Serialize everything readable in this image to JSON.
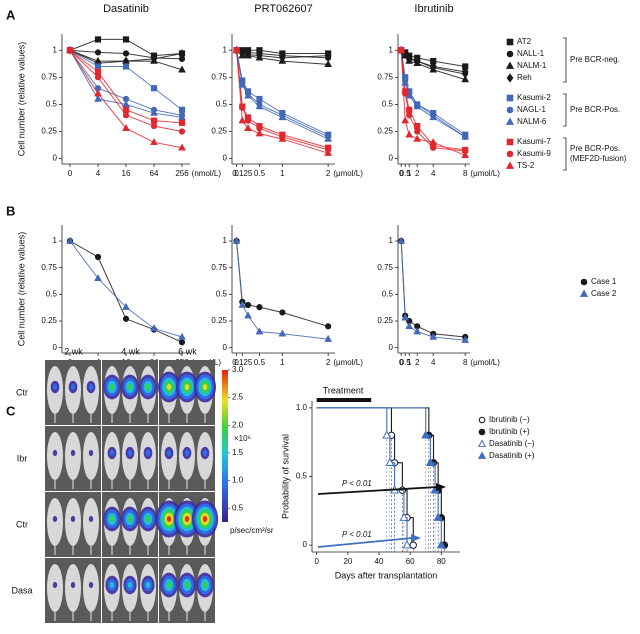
{
  "panel_labels": [
    "A",
    "B",
    "C"
  ],
  "legend_groups": [
    [
      "Pre BCR-neg."
    ],
    [
      "Pre BCR-Pos."
    ],
    [
      "Pre BCR-Pos.",
      "(MEF2D-fusion)"
    ]
  ],
  "chart_data": [
    {
      "type": "line",
      "title": "Dasatinib",
      "y_label": "Cell number (relative values)",
      "categories": [
        "0",
        "4",
        "16",
        "64",
        "256"
      ],
      "x_unit": "(nmol/L)",
      "ylim": [
        -0.05,
        1.15
      ],
      "yticks": [
        0,
        0.25,
        0.5,
        0.75,
        1
      ],
      "legend": true,
      "series": [
        {
          "name": "AT2",
          "color": "#1a1a1a",
          "marker": "square",
          "values": [
            1,
            1.1,
            1.1,
            0.95,
            0.97
          ]
        },
        {
          "name": "NALL-1",
          "color": "#1a1a1a",
          "marker": "circle",
          "values": [
            1,
            0.98,
            0.97,
            0.93,
            0.92
          ]
        },
        {
          "name": "NALM-1",
          "color": "#1a1a1a",
          "marker": "triangle",
          "values": [
            1,
            0.9,
            0.9,
            0.9,
            0.82
          ]
        },
        {
          "name": "Reh",
          "color": "#1a1a1a",
          "marker": "diamond",
          "values": [
            1,
            0.88,
            0.9,
            0.92,
            0.97
          ]
        },
        {
          "name": "Kasumi-2",
          "color": "#4468b8",
          "marker": "square",
          "values": [
            1,
            0.85,
            0.85,
            0.65,
            0.45
          ]
        },
        {
          "name": "NAGL-1",
          "color": "#4468b8",
          "marker": "circle",
          "values": [
            1,
            0.65,
            0.55,
            0.45,
            0.4
          ]
        },
        {
          "name": "NALM-6",
          "color": "#4468b8",
          "marker": "triangle",
          "values": [
            1,
            0.55,
            0.5,
            0.42,
            0.38
          ]
        },
        {
          "name": "Kasumi-7",
          "color": "#e0282e",
          "marker": "square",
          "values": [
            1,
            0.8,
            0.45,
            0.35,
            0.33
          ]
        },
        {
          "name": "Kasumi-9",
          "color": "#e0282e",
          "marker": "circle",
          "values": [
            1,
            0.75,
            0.4,
            0.3,
            0.25
          ]
        },
        {
          "name": "TS-2",
          "color": "#e0282e",
          "marker": "triangle",
          "values": [
            1,
            0.6,
            0.28,
            0.15,
            0.1
          ]
        }
      ]
    },
    {
      "type": "line",
      "title": "PRT062607",
      "x": [
        0,
        0.125,
        0.25,
        0.5,
        1,
        2
      ],
      "xlim": [
        -0.1,
        2.15
      ],
      "xticks": [
        0,
        0.125,
        0.5,
        1,
        2
      ],
      "x_unit": "(μmol/L)",
      "ylim": [
        -0.05,
        1.15
      ],
      "yticks": [
        0,
        0.25,
        0.5,
        0.75,
        1
      ],
      "series": [
        {
          "color": "#1a1a1a",
          "marker": "square",
          "values": [
            1,
            1,
            1,
            1,
            0.97,
            0.97
          ]
        },
        {
          "color": "#1a1a1a",
          "marker": "circle",
          "values": [
            1,
            0.98,
            0.98,
            0.97,
            0.95,
            0.93
          ]
        },
        {
          "color": "#1a1a1a",
          "marker": "triangle",
          "values": [
            1,
            0.95,
            0.95,
            0.93,
            0.9,
            0.87
          ]
        },
        {
          "color": "#1a1a1a",
          "marker": "diamond",
          "values": [
            1,
            0.97,
            0.96,
            0.95,
            0.93,
            0.95
          ]
        },
        {
          "color": "#4468b8",
          "marker": "square",
          "values": [
            1,
            0.72,
            0.62,
            0.55,
            0.42,
            0.22
          ]
        },
        {
          "color": "#4468b8",
          "marker": "circle",
          "values": [
            1,
            0.7,
            0.6,
            0.5,
            0.4,
            0.2
          ]
        },
        {
          "color": "#4468b8",
          "marker": "triangle",
          "values": [
            1,
            0.68,
            0.58,
            0.48,
            0.38,
            0.18
          ]
        },
        {
          "color": "#e0282e",
          "marker": "square",
          "values": [
            1,
            0.48,
            0.38,
            0.3,
            0.22,
            0.1
          ]
        },
        {
          "color": "#e0282e",
          "marker": "circle",
          "values": [
            1,
            0.47,
            0.35,
            0.28,
            0.2,
            0.08
          ]
        },
        {
          "color": "#e0282e",
          "marker": "triangle",
          "values": [
            1,
            0.35,
            0.28,
            0.23,
            0.18,
            0.05
          ]
        }
      ]
    },
    {
      "type": "line",
      "title": "Ibrutinib",
      "x": [
        0,
        0.5,
        1,
        2,
        4,
        8
      ],
      "xlim": [
        -0.4,
        8.6
      ],
      "xticks": [
        0,
        0.5,
        1,
        2,
        4,
        8
      ],
      "x_unit": "(μmol/L)",
      "ylim": [
        -0.05,
        1.15
      ],
      "yticks": [
        0,
        0.25,
        0.5,
        0.75,
        1
      ],
      "series": [
        {
          "color": "#1a1a1a",
          "marker": "square",
          "values": [
            1,
            0.98,
            0.95,
            0.93,
            0.9,
            0.85
          ]
        },
        {
          "color": "#1a1a1a",
          "marker": "circle",
          "values": [
            1,
            0.97,
            0.92,
            0.9,
            0.85,
            0.8
          ]
        },
        {
          "color": "#1a1a1a",
          "marker": "triangle",
          "values": [
            1,
            0.95,
            0.9,
            0.88,
            0.82,
            0.73
          ]
        },
        {
          "color": "#1a1a1a",
          "marker": "diamond",
          "values": [
            1,
            0.96,
            0.93,
            0.9,
            0.84,
            0.78
          ]
        },
        {
          "color": "#4468b8",
          "marker": "square",
          "values": [
            1,
            0.75,
            0.62,
            0.5,
            0.42,
            0.22
          ]
        },
        {
          "color": "#4468b8",
          "marker": "circle",
          "values": [
            1,
            0.72,
            0.6,
            0.5,
            0.4,
            0.2
          ]
        },
        {
          "color": "#4468b8",
          "marker": "triangle",
          "values": [
            1,
            0.7,
            0.58,
            0.48,
            0.38,
            0.2
          ]
        },
        {
          "color": "#e0282e",
          "marker": "square",
          "values": [
            1,
            0.62,
            0.45,
            0.3,
            0.12,
            0.08
          ]
        },
        {
          "color": "#e0282e",
          "marker": "circle",
          "values": [
            1,
            0.6,
            0.4,
            0.25,
            0.1,
            0.07
          ]
        },
        {
          "color": "#e0282e",
          "marker": "triangle",
          "values": [
            1,
            0.35,
            0.22,
            0.18,
            0.15,
            0.03
          ]
        }
      ]
    },
    {
      "type": "line",
      "y_label": "Cell number (relative values)",
      "categories": [
        "0",
        "4",
        "16",
        "64",
        "256"
      ],
      "x_unit": "(nmol/L)",
      "ylim": [
        -0.05,
        1.15
      ],
      "yticks": [
        0,
        0.25,
        0.5,
        0.75,
        1
      ],
      "legend": true,
      "series": [
        {
          "name": "Case 1",
          "color": "#1a1a1a",
          "marker": "circle",
          "values": [
            1,
            0.85,
            0.27,
            0.17,
            0.05
          ]
        },
        {
          "name": "Case 2",
          "color": "#4468b8",
          "marker": "triangle",
          "values": [
            1,
            0.65,
            0.38,
            0.18,
            0.1
          ]
        }
      ]
    },
    {
      "type": "line",
      "x": [
        0,
        0.125,
        0.25,
        0.5,
        1,
        2
      ],
      "xlim": [
        -0.1,
        2.15
      ],
      "xticks": [
        0,
        0.125,
        0.5,
        1,
        2
      ],
      "x_unit": "(μmol/L)",
      "ylim": [
        -0.05,
        1.15
      ],
      "yticks": [
        0,
        0.25,
        0.5,
        0.75,
        1
      ],
      "series": [
        {
          "color": "#1a1a1a",
          "marker": "circle",
          "values": [
            1,
            0.43,
            0.4,
            0.38,
            0.33,
            0.2
          ]
        },
        {
          "color": "#4468b8",
          "marker": "triangle",
          "values": [
            1,
            0.4,
            0.3,
            0.15,
            0.13,
            0.08
          ]
        }
      ]
    },
    {
      "type": "line",
      "x": [
        0,
        0.5,
        1,
        2,
        4,
        8
      ],
      "xlim": [
        -0.4,
        8.6
      ],
      "xticks": [
        0,
        0.5,
        1,
        2,
        4,
        8
      ],
      "x_unit": "(μmol/L)",
      "ylim": [
        -0.05,
        1.15
      ],
      "yticks": [
        0,
        0.25,
        0.5,
        0.75,
        1
      ],
      "series": [
        {
          "color": "#1a1a1a",
          "marker": "circle",
          "values": [
            1,
            0.3,
            0.25,
            0.2,
            0.13,
            0.1
          ]
        },
        {
          "color": "#4468b8",
          "marker": "triangle",
          "values": [
            1,
            0.28,
            0.2,
            0.15,
            0.1,
            0.07
          ]
        }
      ]
    },
    {
      "type": "step",
      "x_label": "Days after transplantation",
      "y_label": "Probability of survival",
      "xlim": [
        -3,
        92
      ],
      "xticks": [
        0,
        20,
        40,
        60,
        80
      ],
      "ylim": [
        -0.05,
        1.05
      ],
      "yticks": [
        0,
        0.5,
        {
          "value": 1,
          "label": "1.0"
        }
      ],
      "treatment": {
        "label": "Treatment",
        "range": [
          0,
          35
        ]
      },
      "annotations": [
        "P < 0.01",
        "P < 0.01"
      ],
      "legend": true,
      "series": [
        {
          "name": "Ibrutinib (−)",
          "color": "#1a1a1a",
          "marker": "circle",
          "filled": false,
          "x": [
            0,
            48,
            50,
            55,
            58,
            62
          ],
          "values": [
            1,
            0.8,
            0.6,
            0.4,
            0.2,
            0
          ]
        },
        {
          "name": "Ibrutinib (+)",
          "color": "#1a1a1a",
          "marker": "circle",
          "filled": true,
          "x": [
            0,
            72,
            75,
            78,
            80,
            82
          ],
          "values": [
            1,
            0.8,
            0.6,
            0.4,
            0.2,
            0
          ]
        },
        {
          "name": "Dasatinib (−)",
          "color": "#3f6fc0",
          "marker": "triangle",
          "filled": false,
          "x": [
            0,
            45,
            47,
            50,
            56,
            58
          ],
          "values": [
            1,
            0.8,
            0.6,
            0.4,
            0.2,
            0
          ]
        },
        {
          "name": "Dasatinib (+)",
          "color": "#3f6fc0",
          "marker": "triangle",
          "filled": true,
          "x": [
            0,
            70,
            73,
            76,
            78,
            80
          ],
          "values": [
            1,
            0.8,
            0.6,
            0.4,
            0.2,
            0
          ]
        }
      ]
    }
  ],
  "imaging": {
    "columns": [
      "2 wk",
      "4 wk",
      "6 wk"
    ],
    "rows": [
      "Ctr",
      "Ibr",
      "Ctr",
      "Dasa"
    ],
    "colorbar": {
      "lim": [
        0.25,
        3.0
      ],
      "ticks": [
        {
          "value": 3.0,
          "label": "3.0"
        },
        2.5,
        {
          "value": 2.0,
          "label": "2.0"
        },
        1.5,
        {
          "value": 1.0,
          "label": "1.0"
        },
        0.5
      ],
      "multiplier": "×10⁶",
      "unit": "p/sec/cm²/sr"
    }
  }
}
